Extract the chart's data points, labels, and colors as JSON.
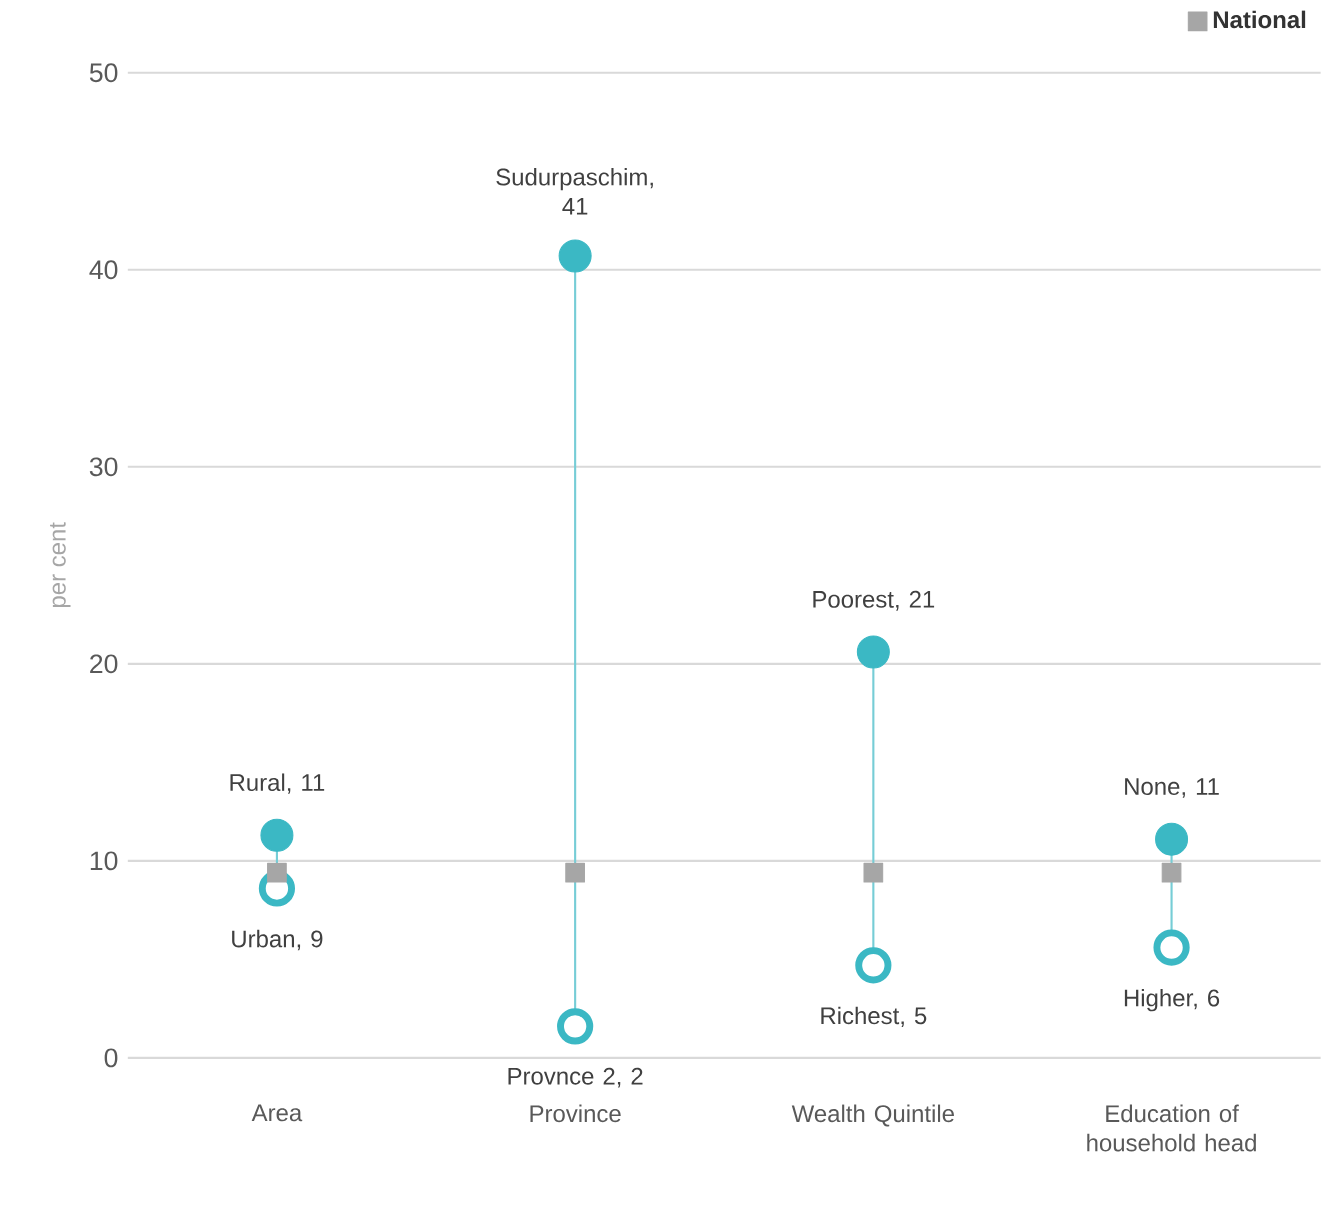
{
  "chart_data": {
    "type": "scatter",
    "categories": [
      "Area",
      "Province",
      "Wealth Quintile",
      "Education of household head"
    ],
    "ylabel": "per cent",
    "ylim": [
      0,
      50
    ],
    "yticks": [
      0,
      10,
      20,
      30,
      40,
      50
    ],
    "grid": "y",
    "legend": "top right",
    "series": [
      {
        "color": "#3bb8c4",
        "marker": "circle",
        "values": [
          11.3,
          40.7,
          20.6,
          11.1
        ],
        "value_labels": [
          "Rural, 11",
          "Sudurpaschim, 41",
          "Poorest, 21",
          "None, 11"
        ]
      },
      {
        "color": "#3bb8c4",
        "marker": "circle",
        "values": [
          8.6,
          1.6,
          4.7,
          5.6
        ],
        "value_labels": [
          "Urban, 9",
          "Provnce 2, 2",
          "Richest, 5",
          "Higher, 6"
        ]
      },
      {
        "name": "National",
        "color": "#a6a6a6",
        "marker": "square",
        "values": [
          9.4,
          9.4,
          9.4,
          9.4
        ]
      }
    ]
  }
}
